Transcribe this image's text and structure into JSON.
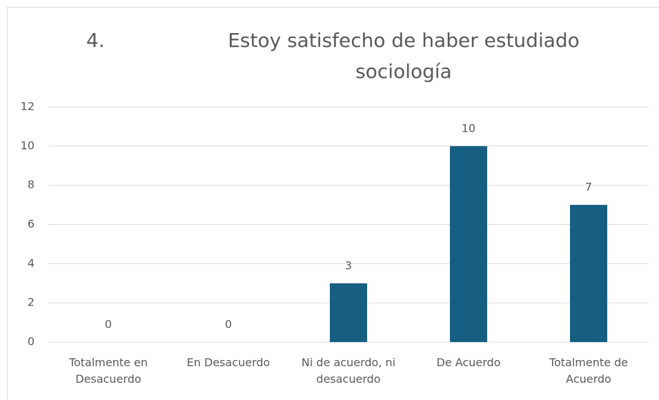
{
  "chart_data": {
    "type": "bar",
    "title_number": "4.",
    "title": "Estoy satisfecho de haber estudiado sociología",
    "categories": [
      "Totalmente en Desacuerdo",
      "En Desacuerdo",
      "Ni de acuerdo, ni desacuerdo",
      "De Acuerdo",
      "Totalmente de Acuerdo"
    ],
    "values": [
      0,
      0,
      3,
      10,
      7
    ],
    "color": "#175f82",
    "ylim": [
      0,
      12
    ],
    "yticks": [
      0,
      2,
      4,
      6,
      8,
      10,
      12
    ],
    "grid": true
  }
}
